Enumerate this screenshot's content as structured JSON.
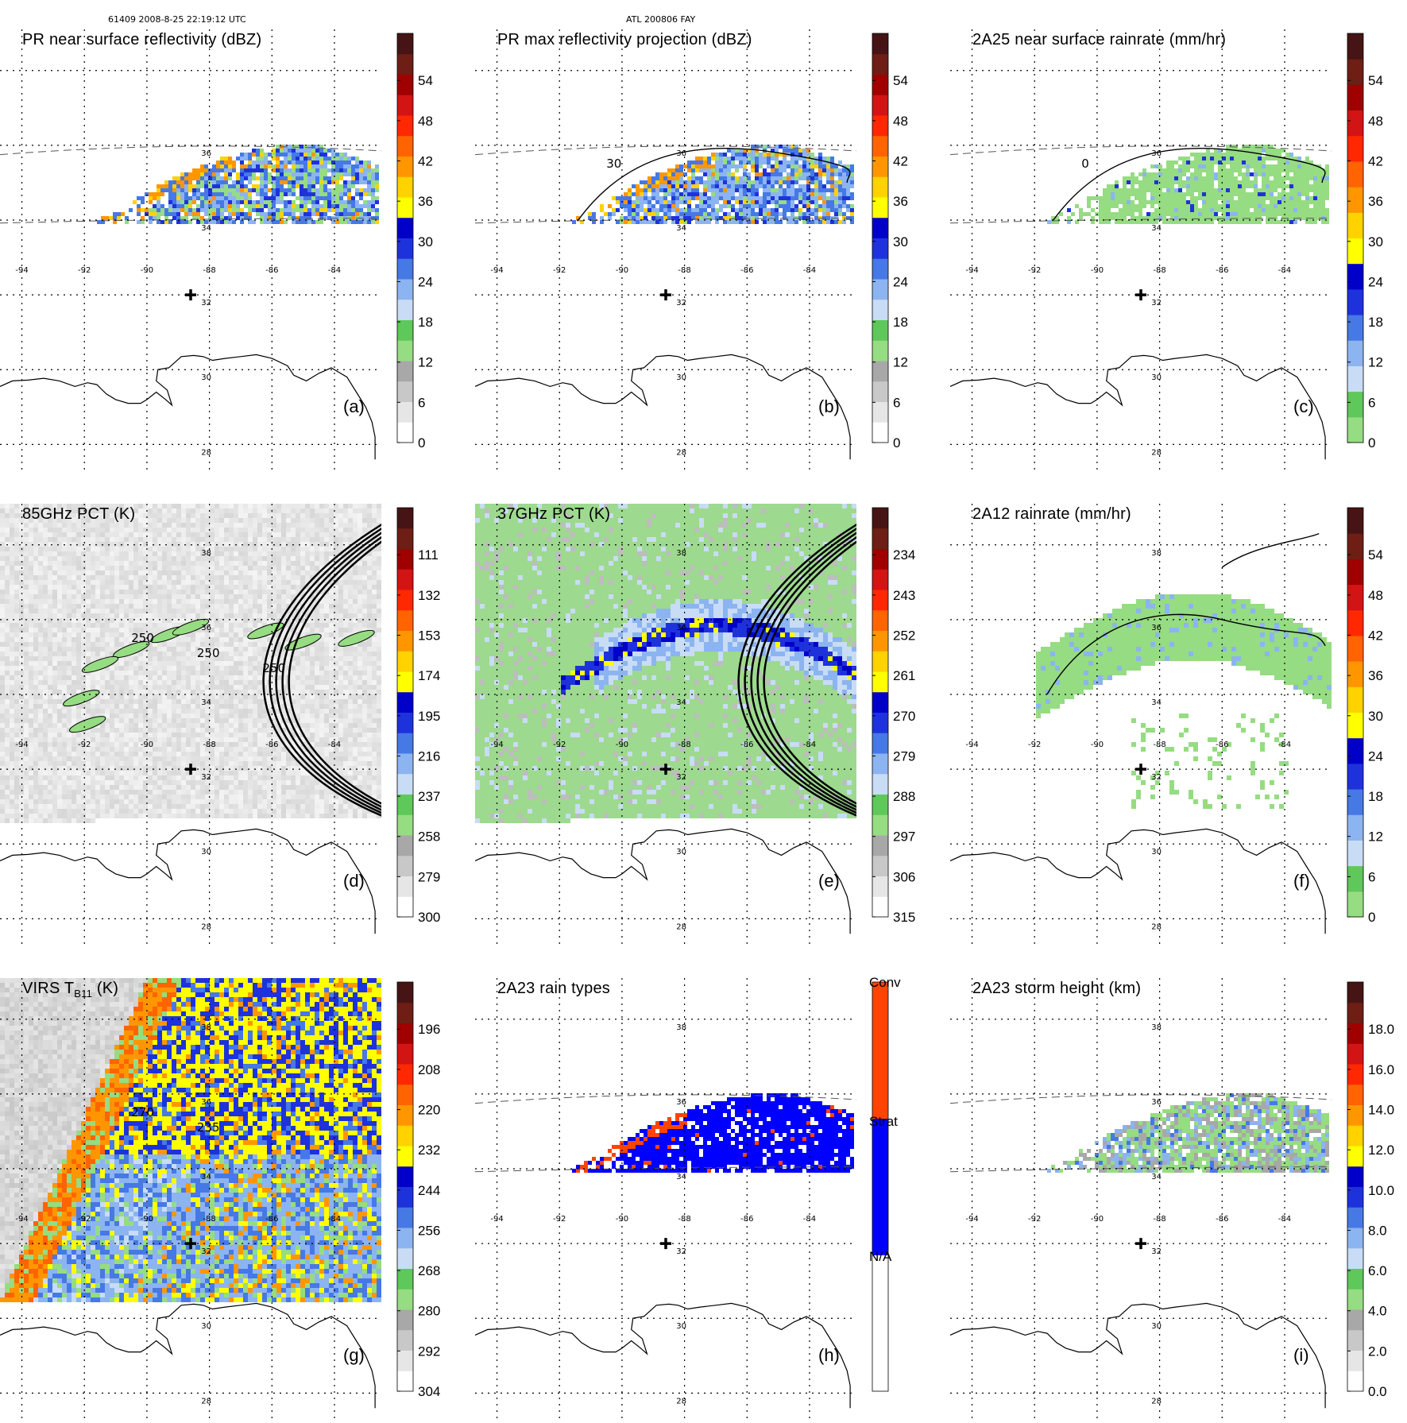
{
  "header": {
    "orbit_time": "61409 2008-8-25 22:19:12 UTC",
    "storm_id": "ATL 200806 FAY"
  },
  "colors": {
    "ramp_reflectivity": [
      "#ffffff",
      "#e6e6e6",
      "#c8c8c8",
      "#a8a8a8",
      "#96dc82",
      "#5ec85a",
      "#c8dcf5",
      "#8cb4f0",
      "#4678e6",
      "#1e32dc",
      "#0000c8",
      "#ffff00",
      "#ffd200",
      "#ff9600",
      "#ff6400",
      "#ff2800",
      "#d21414",
      "#a00000",
      "#6e1e14",
      "#461414"
    ],
    "ramp_rain": [
      "#96dc82",
      "#5ec85a",
      "#c8dcf5",
      "#8cb4f0",
      "#4678e6",
      "#1e32dc",
      "#0000c8",
      "#ffff00",
      "#ffd200",
      "#ff9600",
      "#ff6400",
      "#ff2800",
      "#d21414",
      "#a00000",
      "#6e1e14",
      "#461414"
    ],
    "ramp_raintype": [
      "#ffffff",
      "#0000ff",
      "#ff4400"
    ],
    "coast": "#000000",
    "grid": "#000000"
  },
  "chart_data": [
    {
      "id": "a",
      "type": "heatmap",
      "title": "PR near surface reflectivity (dBZ)",
      "label": "(a)",
      "colorbar_ticks": [
        "0",
        "6",
        "12",
        "18",
        "24",
        "30",
        "36",
        "42",
        "48",
        "54"
      ],
      "colorbar_range": [
        0,
        60
      ],
      "ramp": "ramp_reflectivity",
      "swath": "pr",
      "field": "reflectivity",
      "contour": false,
      "lon_labels": [
        "-94",
        "-92",
        "-90",
        "-88",
        "-86",
        "-84"
      ],
      "lat_labels": [
        "36",
        "34",
        "32",
        "30",
        "28"
      ],
      "storm_center": [
        -88.6,
        32.0
      ]
    },
    {
      "id": "b",
      "type": "heatmap",
      "title": "PR max reflectivity projection (dBZ)",
      "label": "(b)",
      "colorbar_ticks": [
        "0",
        "6",
        "12",
        "18",
        "24",
        "30",
        "36",
        "42",
        "48",
        "54"
      ],
      "colorbar_range": [
        0,
        60
      ],
      "ramp": "ramp_reflectivity",
      "swath": "pr",
      "field": "maxref",
      "contour": true,
      "lon_labels": [
        "-94",
        "-92",
        "-90",
        "-88",
        "-86",
        "-84"
      ],
      "lat_labels": [
        "36",
        "34",
        "32",
        "30",
        "28"
      ],
      "contour_labels": [
        "30"
      ],
      "storm_center": [
        -88.6,
        32.0
      ]
    },
    {
      "id": "c",
      "type": "heatmap",
      "title": "2A25 near surface rainrate (mm/hr)",
      "label": "(c)",
      "colorbar_ticks": [
        "0",
        "6",
        "12",
        "18",
        "24",
        "30",
        "36",
        "42",
        "48",
        "54"
      ],
      "colorbar_range": [
        0,
        60
      ],
      "ramp": "ramp_rain",
      "swath": "pr",
      "field": "rain",
      "contour": true,
      "lon_labels": [
        "-94",
        "-92",
        "-90",
        "-88",
        "-86",
        "-84"
      ],
      "lat_labels": [
        "36",
        "34",
        "32",
        "30",
        "28"
      ],
      "contour_labels": [
        "0"
      ],
      "storm_center": [
        -88.6,
        32.0
      ]
    },
    {
      "id": "d",
      "type": "heatmap",
      "title": "85GHz PCT (K)",
      "label": "(d)",
      "colorbar_ticks": [
        "300",
        "279",
        "258",
        "237",
        "216",
        "195",
        "174",
        "153",
        "132",
        "111"
      ],
      "colorbar_range": [
        90,
        300
      ],
      "ramp": "ramp_reflectivity",
      "swath": "tmi",
      "field": "pct85",
      "contour": true,
      "arcs": true,
      "lon_labels": [
        "-94",
        "-92",
        "-90",
        "-88",
        "-86",
        "-84"
      ],
      "lat_labels": [
        "38",
        "36",
        "34",
        "32",
        "30",
        "28"
      ],
      "contour_labels": [
        "250",
        "250",
        "250"
      ],
      "storm_center": [
        -88.6,
        32.0
      ]
    },
    {
      "id": "e",
      "type": "heatmap",
      "title": "37GHz PCT (K)",
      "label": "(e)",
      "colorbar_ticks": [
        "315",
        "306",
        "297",
        "288",
        "279",
        "270",
        "261",
        "252",
        "243",
        "234"
      ],
      "colorbar_range": [
        225,
        315
      ],
      "ramp": "ramp_reflectivity",
      "swath": "tmi",
      "field": "pct37",
      "contour": false,
      "arcs": true,
      "lon_labels": [
        "-94",
        "-92",
        "-90",
        "-88",
        "-86",
        "-84"
      ],
      "lat_labels": [
        "38",
        "36",
        "34",
        "32",
        "30",
        "28"
      ],
      "storm_center": [
        -88.6,
        32.0
      ]
    },
    {
      "id": "f",
      "type": "heatmap",
      "title": "2A12 rainrate (mm/hr)",
      "label": "(f)",
      "colorbar_ticks": [
        "0",
        "6",
        "12",
        "18",
        "24",
        "30",
        "36",
        "42",
        "48",
        "54"
      ],
      "colorbar_range": [
        0,
        60
      ],
      "ramp": "ramp_rain",
      "swath": "tmi",
      "field": "rain12",
      "contour": true,
      "lon_labels": [
        "-94",
        "-92",
        "-90",
        "-88",
        "-86",
        "-84"
      ],
      "lat_labels": [
        "38",
        "36",
        "34",
        "32",
        "30",
        "28"
      ],
      "storm_center": [
        -88.6,
        32.0
      ]
    },
    {
      "id": "g",
      "type": "heatmap",
      "title": "VIRS T",
      "title_sub": "B11",
      "title_tail": " (K)",
      "label": "(g)",
      "colorbar_ticks": [
        "304",
        "292",
        "280",
        "268",
        "256",
        "244",
        "232",
        "220",
        "208",
        "196"
      ],
      "colorbar_range": [
        184,
        304
      ],
      "ramp": "ramp_reflectivity",
      "swath": "virs",
      "field": "ir",
      "contour": true,
      "lon_labels": [
        "-94",
        "-92",
        "-90",
        "-88",
        "-86",
        "-84"
      ],
      "lat_labels": [
        "38",
        "36",
        "34",
        "32",
        "30",
        "28"
      ],
      "contour_labels": [
        "270",
        "235"
      ],
      "storm_center": [
        -88.6,
        32.0
      ]
    },
    {
      "id": "h",
      "type": "heatmap",
      "title": "2A23 rain types",
      "label": "(h)",
      "colorbar_ticks": [
        "N/A",
        "Strat",
        "Conv"
      ],
      "colorbar_range": [
        0,
        3
      ],
      "ramp": "ramp_raintype",
      "swath": "pr",
      "field": "raintype",
      "contour": false,
      "lon_labels": [
        "-94",
        "-92",
        "-90",
        "-88",
        "-86",
        "-84"
      ],
      "lat_labels": [
        "38",
        "36",
        "34",
        "32",
        "30",
        "28"
      ],
      "storm_center": [
        -88.6,
        32.0
      ]
    },
    {
      "id": "i",
      "type": "heatmap",
      "title": "2A23 storm height (km)",
      "label": "(i)",
      "colorbar_ticks": [
        "0.0",
        "2.0",
        "4.0",
        "6.0",
        "8.0",
        "10.0",
        "12.0",
        "14.0",
        "16.0",
        "18.0"
      ],
      "colorbar_range": [
        0,
        20
      ],
      "ramp": "ramp_reflectivity",
      "swath": "pr",
      "field": "height",
      "contour": false,
      "lon_labels": [
        "-94",
        "-92",
        "-90",
        "-88",
        "-86",
        "-84"
      ],
      "lat_labels": [
        "38",
        "36",
        "34",
        "32",
        "30",
        "28"
      ],
      "storm_center": [
        -88.6,
        32.0
      ]
    }
  ]
}
